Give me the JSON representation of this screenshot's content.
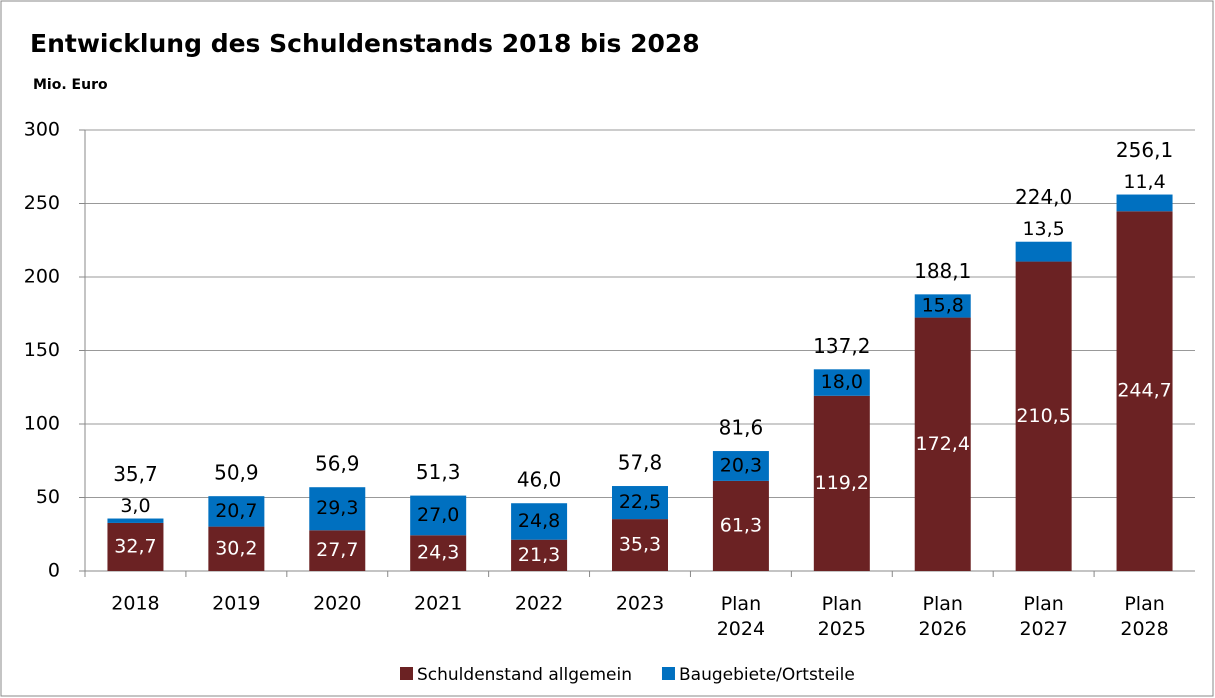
{
  "chart_data": {
    "type": "stacked_bar",
    "title": "Entwicklung des Schuldenstands 2018 bis 2028",
    "subtitle": "Mio. Euro",
    "categories": [
      "2018",
      "2019",
      "2020",
      "2021",
      "2022",
      "2023",
      "Plan 2024",
      "Plan 2025",
      "Plan 2026",
      "Plan 2027",
      "Plan 2028"
    ],
    "series": [
      {
        "name": "Schuldenstand allgemein",
        "color": "#6b2223",
        "values": [
          32.7,
          30.2,
          27.7,
          24.3,
          21.3,
          35.3,
          61.3,
          119.2,
          172.4,
          210.5,
          244.7
        ],
        "value_labels": [
          "32,7",
          "30,2",
          "27,7",
          "24,3",
          "21,3",
          "35,3",
          "61,3",
          "119,2",
          "172,4",
          "210,5",
          "244,7"
        ]
      },
      {
        "name": "Baugebiete/Ortsteile",
        "color": "#0070c0",
        "values": [
          3.0,
          20.7,
          29.3,
          27.0,
          24.8,
          22.5,
          20.3,
          18.0,
          15.8,
          13.5,
          11.4
        ],
        "value_labels": [
          "3,0",
          "20,7",
          "29,3",
          "27,0",
          "24,8",
          "22,5",
          "20,3",
          "18,0",
          "15,8",
          "13,5",
          "11,4"
        ]
      }
    ],
    "totals": [
      35.7,
      50.9,
      56.9,
      51.3,
      46.0,
      57.8,
      81.6,
      137.2,
      188.1,
      224.0,
      256.1
    ],
    "total_labels": [
      "35,7",
      "50,9",
      "56,9",
      "51,3",
      "46,0",
      "57,8",
      "81,6",
      "137,2",
      "188,1",
      "224,0",
      "256,1"
    ],
    "ylim": [
      0,
      300
    ],
    "yticks": [
      0,
      50,
      100,
      150,
      200,
      250,
      300
    ],
    "grid": true,
    "legend": "bottom"
  }
}
